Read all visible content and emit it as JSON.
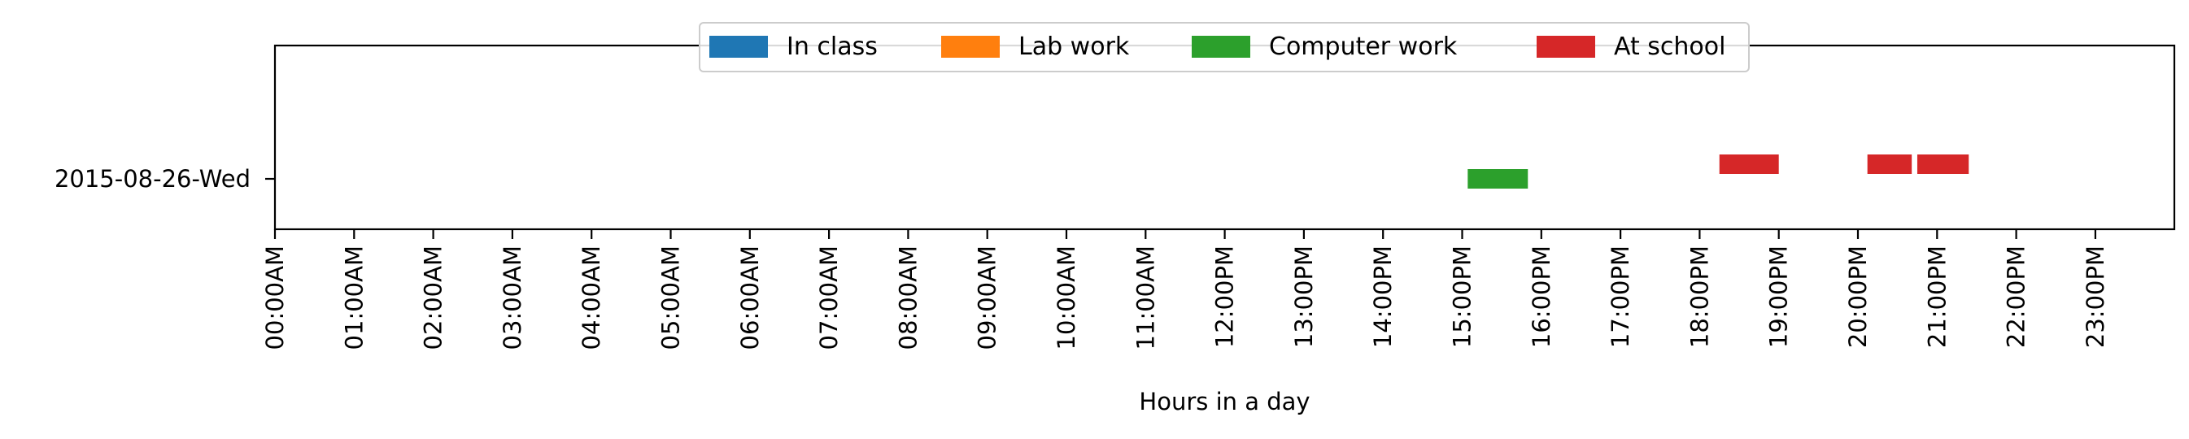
{
  "chart_data": {
    "type": "timeline",
    "title": "",
    "xlabel": "Hours in a day",
    "ylabel": "",
    "xlim": [
      0,
      24.2
    ],
    "x_ticks": [
      {
        "value": 0,
        "label": "00:00AM"
      },
      {
        "value": 1,
        "label": "01:00AM"
      },
      {
        "value": 2,
        "label": "02:00AM"
      },
      {
        "value": 3,
        "label": "03:00AM"
      },
      {
        "value": 4,
        "label": "04:00AM"
      },
      {
        "value": 5,
        "label": "05:00AM"
      },
      {
        "value": 6,
        "label": "06:00AM"
      },
      {
        "value": 7,
        "label": "07:00AM"
      },
      {
        "value": 8,
        "label": "08:00AM"
      },
      {
        "value": 9,
        "label": "09:00AM"
      },
      {
        "value": 10,
        "label": "10:00AM"
      },
      {
        "value": 11,
        "label": "11:00AM"
      },
      {
        "value": 12,
        "label": "12:00PM"
      },
      {
        "value": 13,
        "label": "13:00PM"
      },
      {
        "value": 14,
        "label": "14:00PM"
      },
      {
        "value": 15,
        "label": "15:00PM"
      },
      {
        "value": 16,
        "label": "16:00PM"
      },
      {
        "value": 17,
        "label": "17:00PM"
      },
      {
        "value": 18,
        "label": "18:00PM"
      },
      {
        "value": 19,
        "label": "19:00PM"
      },
      {
        "value": 20,
        "label": "20:00PM"
      },
      {
        "value": 21,
        "label": "21:00PM"
      },
      {
        "value": 22,
        "label": "22:00PM"
      },
      {
        "value": 23,
        "label": "23:00PM"
      }
    ],
    "categories": [
      "2015-08-26-Wed"
    ],
    "legend_position": "top-center",
    "series": [
      {
        "name": "In class",
        "color": "#1f77b4",
        "offset": 0,
        "segments": []
      },
      {
        "name": "Lab work",
        "color": "#ff7f0e",
        "offset": 0,
        "segments": []
      },
      {
        "name": "Computer work",
        "color": "#2ca02c",
        "offset": 0,
        "segments": [
          {
            "category": "2015-08-26-Wed",
            "start": 15.07,
            "end": 15.83
          }
        ]
      },
      {
        "name": "At school",
        "color": "#d62728",
        "offset": 1,
        "segments": [
          {
            "category": "2015-08-26-Wed",
            "start": 18.25,
            "end": 19.0
          },
          {
            "category": "2015-08-26-Wed",
            "start": 20.12,
            "end": 20.68
          },
          {
            "category": "2015-08-26-Wed",
            "start": 20.75,
            "end": 21.4
          }
        ]
      }
    ]
  }
}
